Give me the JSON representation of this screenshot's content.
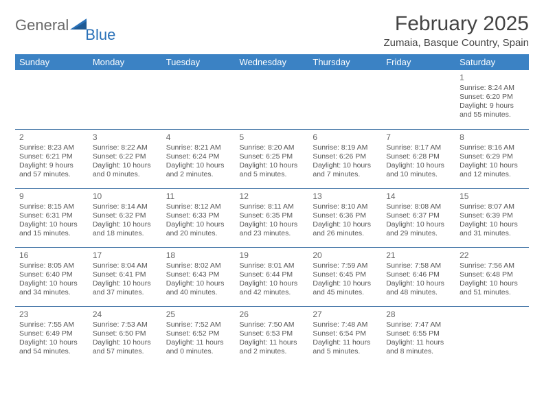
{
  "brand": {
    "general": "General",
    "blue": "Blue"
  },
  "title": "February 2025",
  "location": "Zumaia, Basque Country, Spain",
  "colors": {
    "header_bg": "#3b82c4",
    "header_text": "#ffffff",
    "rule": "#3b6fa3",
    "logo_gray": "#6a6a6a",
    "logo_blue": "#2a71b8",
    "body_text": "#555555"
  },
  "weekdays": [
    "Sunday",
    "Monday",
    "Tuesday",
    "Wednesday",
    "Thursday",
    "Friday",
    "Saturday"
  ],
  "weeks": [
    [
      null,
      null,
      null,
      null,
      null,
      null,
      {
        "n": "1",
        "sunrise": "Sunrise: 8:24 AM",
        "sunset": "Sunset: 6:20 PM",
        "day1": "Daylight: 9 hours",
        "day2": "and 55 minutes."
      }
    ],
    [
      {
        "n": "2",
        "sunrise": "Sunrise: 8:23 AM",
        "sunset": "Sunset: 6:21 PM",
        "day1": "Daylight: 9 hours",
        "day2": "and 57 minutes."
      },
      {
        "n": "3",
        "sunrise": "Sunrise: 8:22 AM",
        "sunset": "Sunset: 6:22 PM",
        "day1": "Daylight: 10 hours",
        "day2": "and 0 minutes."
      },
      {
        "n": "4",
        "sunrise": "Sunrise: 8:21 AM",
        "sunset": "Sunset: 6:24 PM",
        "day1": "Daylight: 10 hours",
        "day2": "and 2 minutes."
      },
      {
        "n": "5",
        "sunrise": "Sunrise: 8:20 AM",
        "sunset": "Sunset: 6:25 PM",
        "day1": "Daylight: 10 hours",
        "day2": "and 5 minutes."
      },
      {
        "n": "6",
        "sunrise": "Sunrise: 8:19 AM",
        "sunset": "Sunset: 6:26 PM",
        "day1": "Daylight: 10 hours",
        "day2": "and 7 minutes."
      },
      {
        "n": "7",
        "sunrise": "Sunrise: 8:17 AM",
        "sunset": "Sunset: 6:28 PM",
        "day1": "Daylight: 10 hours",
        "day2": "and 10 minutes."
      },
      {
        "n": "8",
        "sunrise": "Sunrise: 8:16 AM",
        "sunset": "Sunset: 6:29 PM",
        "day1": "Daylight: 10 hours",
        "day2": "and 12 minutes."
      }
    ],
    [
      {
        "n": "9",
        "sunrise": "Sunrise: 8:15 AM",
        "sunset": "Sunset: 6:31 PM",
        "day1": "Daylight: 10 hours",
        "day2": "and 15 minutes."
      },
      {
        "n": "10",
        "sunrise": "Sunrise: 8:14 AM",
        "sunset": "Sunset: 6:32 PM",
        "day1": "Daylight: 10 hours",
        "day2": "and 18 minutes."
      },
      {
        "n": "11",
        "sunrise": "Sunrise: 8:12 AM",
        "sunset": "Sunset: 6:33 PM",
        "day1": "Daylight: 10 hours",
        "day2": "and 20 minutes."
      },
      {
        "n": "12",
        "sunrise": "Sunrise: 8:11 AM",
        "sunset": "Sunset: 6:35 PM",
        "day1": "Daylight: 10 hours",
        "day2": "and 23 minutes."
      },
      {
        "n": "13",
        "sunrise": "Sunrise: 8:10 AM",
        "sunset": "Sunset: 6:36 PM",
        "day1": "Daylight: 10 hours",
        "day2": "and 26 minutes."
      },
      {
        "n": "14",
        "sunrise": "Sunrise: 8:08 AM",
        "sunset": "Sunset: 6:37 PM",
        "day1": "Daylight: 10 hours",
        "day2": "and 29 minutes."
      },
      {
        "n": "15",
        "sunrise": "Sunrise: 8:07 AM",
        "sunset": "Sunset: 6:39 PM",
        "day1": "Daylight: 10 hours",
        "day2": "and 31 minutes."
      }
    ],
    [
      {
        "n": "16",
        "sunrise": "Sunrise: 8:05 AM",
        "sunset": "Sunset: 6:40 PM",
        "day1": "Daylight: 10 hours",
        "day2": "and 34 minutes."
      },
      {
        "n": "17",
        "sunrise": "Sunrise: 8:04 AM",
        "sunset": "Sunset: 6:41 PM",
        "day1": "Daylight: 10 hours",
        "day2": "and 37 minutes."
      },
      {
        "n": "18",
        "sunrise": "Sunrise: 8:02 AM",
        "sunset": "Sunset: 6:43 PM",
        "day1": "Daylight: 10 hours",
        "day2": "and 40 minutes."
      },
      {
        "n": "19",
        "sunrise": "Sunrise: 8:01 AM",
        "sunset": "Sunset: 6:44 PM",
        "day1": "Daylight: 10 hours",
        "day2": "and 42 minutes."
      },
      {
        "n": "20",
        "sunrise": "Sunrise: 7:59 AM",
        "sunset": "Sunset: 6:45 PM",
        "day1": "Daylight: 10 hours",
        "day2": "and 45 minutes."
      },
      {
        "n": "21",
        "sunrise": "Sunrise: 7:58 AM",
        "sunset": "Sunset: 6:46 PM",
        "day1": "Daylight: 10 hours",
        "day2": "and 48 minutes."
      },
      {
        "n": "22",
        "sunrise": "Sunrise: 7:56 AM",
        "sunset": "Sunset: 6:48 PM",
        "day1": "Daylight: 10 hours",
        "day2": "and 51 minutes."
      }
    ],
    [
      {
        "n": "23",
        "sunrise": "Sunrise: 7:55 AM",
        "sunset": "Sunset: 6:49 PM",
        "day1": "Daylight: 10 hours",
        "day2": "and 54 minutes."
      },
      {
        "n": "24",
        "sunrise": "Sunrise: 7:53 AM",
        "sunset": "Sunset: 6:50 PM",
        "day1": "Daylight: 10 hours",
        "day2": "and 57 minutes."
      },
      {
        "n": "25",
        "sunrise": "Sunrise: 7:52 AM",
        "sunset": "Sunset: 6:52 PM",
        "day1": "Daylight: 11 hours",
        "day2": "and 0 minutes."
      },
      {
        "n": "26",
        "sunrise": "Sunrise: 7:50 AM",
        "sunset": "Sunset: 6:53 PM",
        "day1": "Daylight: 11 hours",
        "day2": "and 2 minutes."
      },
      {
        "n": "27",
        "sunrise": "Sunrise: 7:48 AM",
        "sunset": "Sunset: 6:54 PM",
        "day1": "Daylight: 11 hours",
        "day2": "and 5 minutes."
      },
      {
        "n": "28",
        "sunrise": "Sunrise: 7:47 AM",
        "sunset": "Sunset: 6:55 PM",
        "day1": "Daylight: 11 hours",
        "day2": "and 8 minutes."
      },
      null
    ]
  ]
}
